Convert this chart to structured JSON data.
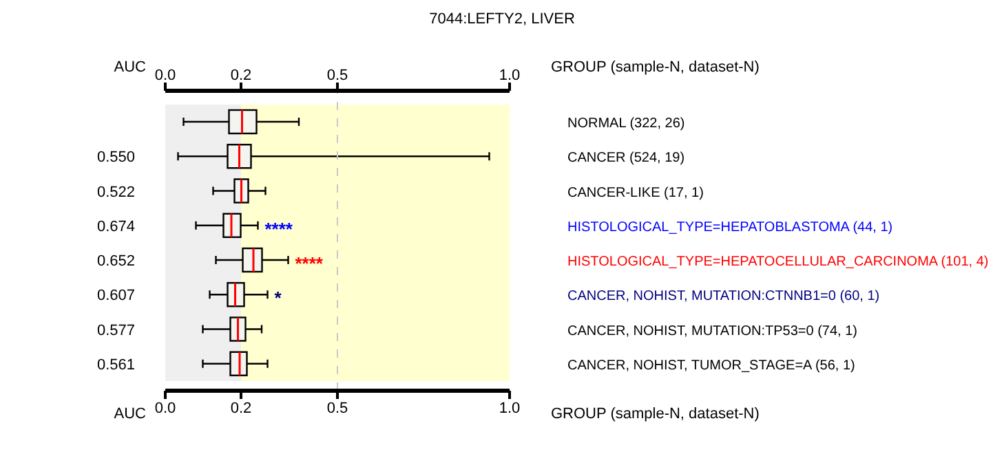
{
  "chart_data": {
    "type": "box",
    "title": "7044:LEFTY2, LIVER",
    "orientation": "horizontal",
    "color": "#000000",
    "categories": [
      "NORMAL (322, 26)",
      "CANCER (524, 19)",
      "CANCER-LIKE (17, 1)",
      "HISTOLOGICAL_TYPE=HEPATOBLASTOMA (44, 1)",
      "HISTOLOGICAL_TYPE=HEPATOCELLULAR_CARCINOMA (101, 4)",
      "CANCER, NOHIST, MUTATION:CTNNB1=0 (60, 1)",
      "CANCER, NOHIST, MUTATION:TP53=0 (74, 1)",
      "CANCER, NOHIST, TUMOR_STAGE=A (56, 1)"
    ],
    "boxes": [
      {
        "low": 0.053,
        "q1": 0.185,
        "median": 0.223,
        "q3": 0.265,
        "high": 0.388
      },
      {
        "low": 0.037,
        "q1": 0.181,
        "median": 0.215,
        "q3": 0.249,
        "high": 0.941
      },
      {
        "low": 0.139,
        "q1": 0.201,
        "median": 0.221,
        "q3": 0.241,
        "high": 0.291
      },
      {
        "low": 0.089,
        "q1": 0.169,
        "median": 0.192,
        "q3": 0.219,
        "high": 0.269
      },
      {
        "low": 0.147,
        "q1": 0.225,
        "median": 0.256,
        "q3": 0.281,
        "high": 0.357
      },
      {
        "low": 0.129,
        "q1": 0.181,
        "median": 0.203,
        "q3": 0.229,
        "high": 0.297
      },
      {
        "low": 0.109,
        "q1": 0.189,
        "median": 0.211,
        "q3": 0.233,
        "high": 0.28
      },
      {
        "low": 0.109,
        "q1": 0.189,
        "median": 0.216,
        "q3": 0.237,
        "high": 0.297
      }
    ],
    "xlim": [
      0,
      1
    ],
    "xticks": [
      {
        "value": 0,
        "label": "0.0"
      },
      {
        "value": 0.22,
        "label": "0.2"
      },
      0.5,
      {
        "value": 1,
        "label": "1.0"
      }
    ],
    "x2lim": [
      0,
      1
    ],
    "x2ticks": [
      {
        "value": 0,
        "label": "0.0"
      },
      {
        "value": 0.22,
        "label": "0.2"
      },
      0.5,
      {
        "value": 1,
        "label": "1.0"
      }
    ],
    "bands": [
      {
        "axis": "x",
        "from": 0,
        "to": 0.22,
        "color": "#efefef"
      },
      {
        "axis": "x",
        "from": 0.22,
        "to": 1,
        "color": "#ffffd0"
      }
    ],
    "ref_lines": [
      {
        "axis": "x",
        "value": 0.5,
        "color": "#c8c8c8",
        "line_style": "dashed"
      }
    ],
    "annotations": [
      "AUC",
      "GROUP (sample-N, dataset-N)",
      "0.550",
      "0.522",
      "0.674",
      "0.652",
      "0.607",
      "0.577",
      "0.561",
      {
        "text": "****",
        "x": 0.269,
        "y": "HISTOLOGICAL_TYPE=HEPATOBLASTOMA (44, 1)"
      },
      {
        "text": "****",
        "x": 0.357,
        "y": "HISTOLOGICAL_TYPE=HEPATOCELLULAR_CARCINOMA (101, 4)"
      },
      {
        "text": "*",
        "x": 0.297,
        "y": "CANCER, NOHIST, MUTATION:CTNNB1=0 (60, 1)"
      }
    ]
  }
}
